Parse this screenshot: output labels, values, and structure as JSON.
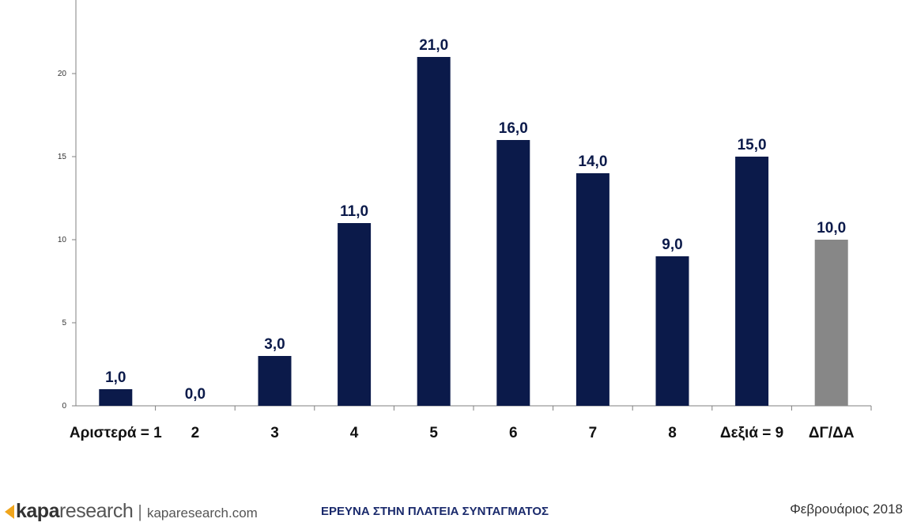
{
  "chart_data": {
    "type": "bar",
    "categories": [
      "Αριστερά = 1",
      "2",
      "3",
      "4",
      "5",
      "6",
      "7",
      "8",
      "Δεξιά = 9",
      "ΔΓ/ΔΑ"
    ],
    "values": [
      1.0,
      0.0,
      3.0,
      11.0,
      21.0,
      16.0,
      14.0,
      9.0,
      15.0,
      10.0
    ],
    "data_labels": [
      "1,0",
      "0,0",
      "3,0",
      "11,0",
      "21,0",
      "16,0",
      "14,0",
      "9,0",
      "15,0",
      "10,0"
    ],
    "y_ticks": [
      0,
      5,
      10,
      15,
      20
    ],
    "ylim": [
      0,
      25
    ],
    "grid": false,
    "legend": "none",
    "colors": {
      "bar": "#0b1a4a",
      "bar_highlight": "#878787",
      "label": "#0b1a4a",
      "axis": "#808080"
    },
    "highlight_index": 9
  },
  "footer": {
    "logo_icon": "kapa-logo-icon",
    "logo_kapa": "kapa",
    "logo_research": "research",
    "url": "kaparesearch.com",
    "survey_title": "ΕΡΕΥΝΑ ΣΤΗΝ ΠΛΑΤΕΙΑ ΣΥΝΤΑΓΜΑΤΟΣ",
    "date": "Φεβρουάριος 2018"
  }
}
